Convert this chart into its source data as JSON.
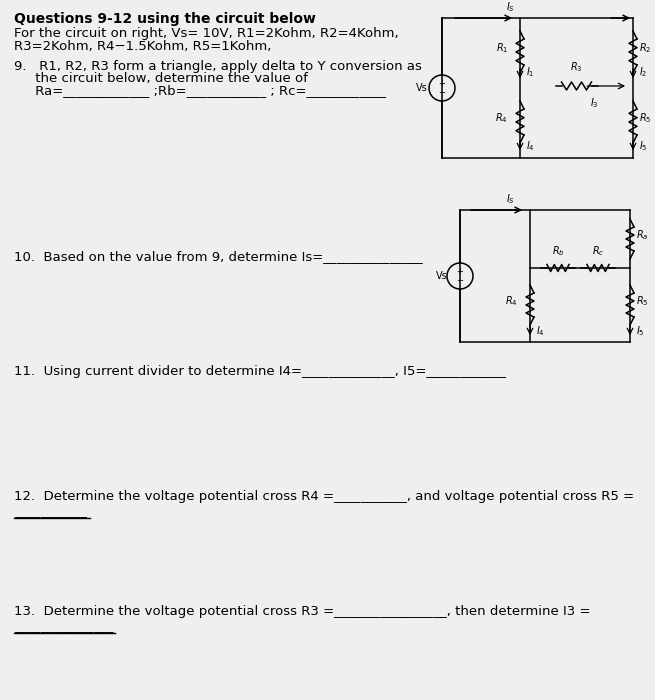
{
  "bg_color": "#f0f0f0",
  "title": "Questions 9-12 using the circuit below",
  "line1": "For the circuit on right, Vs= 10V, R1=2Kohm, R2=4Kohm,",
  "line2": "R3=2Kohm, R4−1.5Kohm, R5=1Kohm,",
  "q9_line1": "9.   R1, R2, R3 form a triangle, apply delta to Y conversion as",
  "q9_line2": "     the circuit below, determine the value of",
  "q9_line3": "     Ra=_____________ ;Rb=____________ ; Rc=____________",
  "q10": "10.  Based on the value from 9, determine Is=_______________",
  "q11": "11.  Using current divider to determine I4=______________, I5=____________",
  "q12a": "12.  Determine the voltage potential cross R4 =___________, and voltage potential cross R5 =",
  "q12b": "___________",
  "q13a": "13.  Determine the voltage potential cross R3 =_________________, then determine I3 =",
  "q13b": "_______________"
}
